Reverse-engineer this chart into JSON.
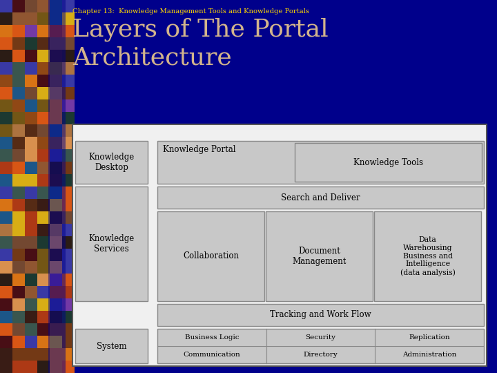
{
  "subtitle": "Chapter 13:  Knowledge Management Tools and Knowledge Portals",
  "title_line1": "Layers of The Portal",
  "title_line2": "Architecture",
  "subtitle_color": "#FFD700",
  "title_color": "#D2B48C",
  "bg_color": "#00008B",
  "box_fill": "#C8C8C8",
  "box_edge": "#888888",
  "outer_fill": "#DCDCDC",
  "outer_edge": "#555555",
  "text_color": "#000000",
  "white_gap": "#FFFFFF"
}
